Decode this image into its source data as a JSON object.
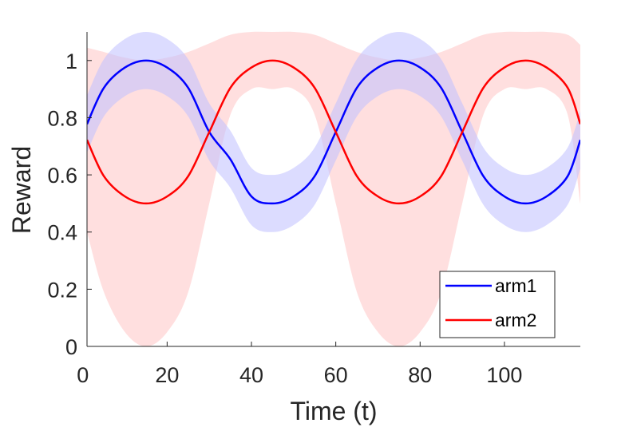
{
  "chart_data": {
    "type": "line",
    "title": "",
    "xlabel": "Time (t)",
    "ylabel": "Reward",
    "xlim": [
      1,
      118
    ],
    "ylim": [
      0,
      1.1
    ],
    "xticks": [
      0,
      20,
      40,
      60,
      80,
      100
    ],
    "yticks": [
      0,
      0.2,
      0.4,
      0.6,
      0.8,
      1
    ],
    "xtick_labels": [
      "0",
      "20",
      "40",
      "60",
      "80",
      "100"
    ],
    "ytick_labels": [
      "0",
      "0.2",
      "0.4",
      "0.6",
      "0.8",
      "1"
    ],
    "legend_position": "bottom-right",
    "series": [
      {
        "name": "arm1",
        "color": "#0000ff",
        "band_color": "#bfbfff",
        "x": [
          1,
          5,
          10,
          15,
          20,
          25,
          30,
          35,
          40,
          45,
          50,
          55,
          60,
          65,
          70,
          75,
          80,
          85,
          90,
          95,
          100,
          105,
          110,
          115,
          118
        ],
        "values": [
          0.7776,
          0.9045,
          0.9755,
          1.0,
          0.9755,
          0.9045,
          0.75,
          0.6545,
          0.5245,
          0.5,
          0.5245,
          0.5955,
          0.75,
          0.9045,
          0.9755,
          1.0,
          0.9755,
          0.9045,
          0.75,
          0.5955,
          0.5245,
          0.5,
          0.5245,
          0.5955,
          0.7224
        ],
        "band_lower": [
          0.6776,
          0.8045,
          0.8755,
          0.9,
          0.8755,
          0.8045,
          0.65,
          0.5545,
          0.4245,
          0.4,
          0.4245,
          0.4955,
          0.65,
          0.8045,
          0.8755,
          0.9,
          0.8755,
          0.8045,
          0.65,
          0.4955,
          0.4245,
          0.4,
          0.4245,
          0.4955,
          0.6224
        ],
        "band_upper": [
          0.8776,
          1.0045,
          1.0755,
          1.1,
          1.0755,
          1.0045,
          0.85,
          0.7545,
          0.6245,
          0.6,
          0.6245,
          0.6955,
          0.85,
          1.0045,
          1.0755,
          1.1,
          1.0755,
          1.0045,
          0.85,
          0.6955,
          0.6245,
          0.6,
          0.6245,
          0.6955,
          0.8224
        ]
      },
      {
        "name": "arm2",
        "color": "#ff0000",
        "band_color": "#ffd9d9",
        "x": [
          1,
          5,
          10,
          15,
          20,
          25,
          30,
          35,
          40,
          45,
          50,
          55,
          60,
          65,
          70,
          75,
          80,
          85,
          90,
          95,
          100,
          105,
          110,
          115,
          118
        ],
        "values": [
          0.7224,
          0.5955,
          0.5245,
          0.5,
          0.5245,
          0.5955,
          0.75,
          0.9045,
          0.9755,
          1.0,
          0.9755,
          0.9045,
          0.75,
          0.5955,
          0.5245,
          0.5,
          0.5245,
          0.5955,
          0.75,
          0.9045,
          0.9755,
          1.0,
          0.9755,
          0.9045,
          0.7776
        ],
        "band_lower": [
          0.4,
          0.19,
          0.05,
          0.0,
          0.05,
          0.19,
          0.5,
          0.81,
          0.9,
          0.9,
          0.9,
          0.81,
          0.5,
          0.19,
          0.05,
          0.0,
          0.05,
          0.19,
          0.5,
          0.81,
          0.9,
          0.9,
          0.9,
          0.81,
          0.5
        ],
        "band_upper": [
          1.045,
          1.03,
          1.01,
          1.0,
          1.01,
          1.03,
          1.06,
          1.09,
          1.1,
          1.1,
          1.1,
          1.09,
          1.06,
          1.03,
          1.01,
          1.0,
          1.01,
          1.03,
          1.06,
          1.09,
          1.1,
          1.1,
          1.1,
          1.09,
          1.055
        ]
      }
    ]
  }
}
